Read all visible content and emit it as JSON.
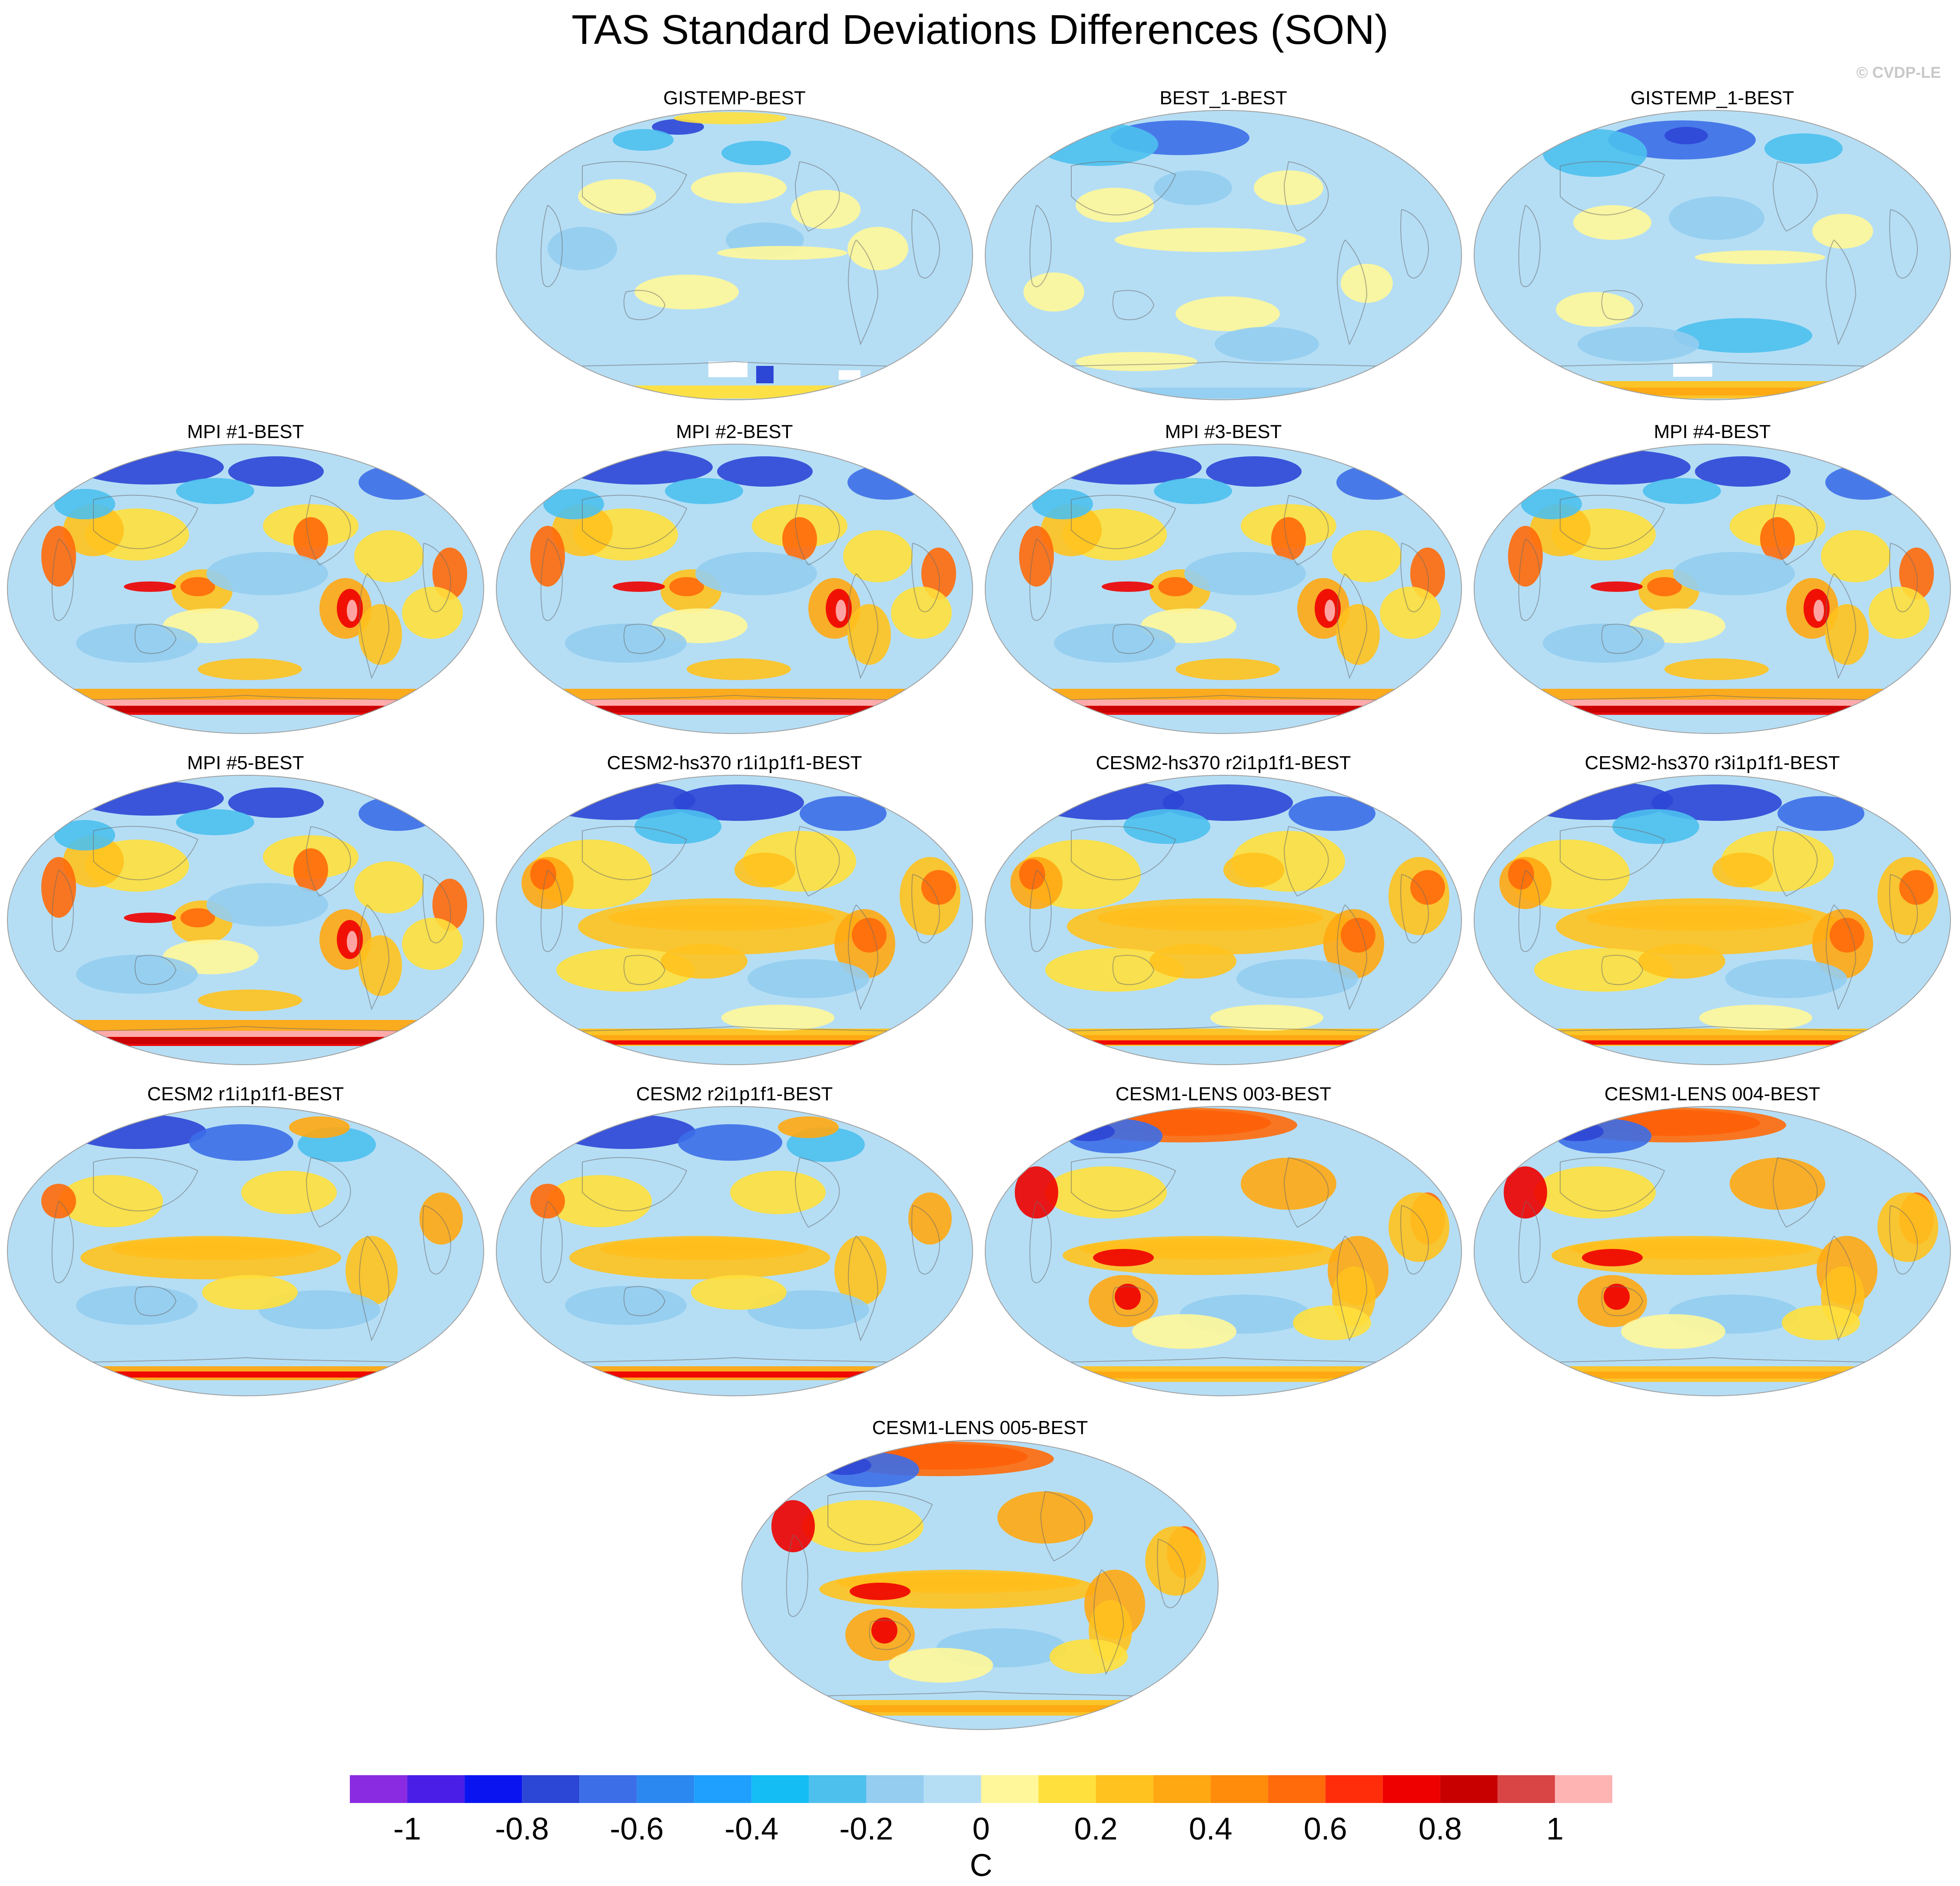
{
  "figure": {
    "title": "TAS Standard Deviations Differences (SON)",
    "watermark": "© CVDP-LE"
  },
  "panels": [
    {
      "title": "GISTEMP-BEST",
      "group": "obs",
      "variant": "obs_gistemp"
    },
    {
      "title": "BEST_1-BEST",
      "group": "obs",
      "variant": "obs_best1"
    },
    {
      "title": "GISTEMP_1-BEST",
      "group": "obs",
      "variant": "obs_gistemp1"
    },
    {
      "title": "MPI #1-BEST",
      "group": "mpi",
      "variant": "mpi"
    },
    {
      "title": "MPI #2-BEST",
      "group": "mpi",
      "variant": "mpi"
    },
    {
      "title": "MPI #3-BEST",
      "group": "mpi",
      "variant": "mpi"
    },
    {
      "title": "MPI #4-BEST",
      "group": "mpi",
      "variant": "mpi"
    },
    {
      "title": "MPI #5-BEST",
      "group": "mpi",
      "variant": "mpi"
    },
    {
      "title": "CESM2-hs370 r1i1p1f1-BEST",
      "group": "cesm2hs",
      "variant": "cesm2hs"
    },
    {
      "title": "CESM2-hs370 r2i1p1f1-BEST",
      "group": "cesm2hs",
      "variant": "cesm2hs"
    },
    {
      "title": "CESM2-hs370 r3i1p1f1-BEST",
      "group": "cesm2hs",
      "variant": "cesm2hs"
    },
    {
      "title": "CESM2 r1i1p1f1-BEST",
      "group": "cesm2",
      "variant": "cesm2"
    },
    {
      "title": "CESM2 r2i1p1f1-BEST",
      "group": "cesm2",
      "variant": "cesm2"
    },
    {
      "title": "CESM1-LENS 003-BEST",
      "group": "cesm1",
      "variant": "cesm1"
    },
    {
      "title": "CESM1-LENS 004-BEST",
      "group": "cesm1",
      "variant": "cesm1"
    },
    {
      "title": "CESM1-LENS 005-BEST",
      "group": "cesm1",
      "variant": "cesm1"
    }
  ],
  "colorbar": {
    "unit": "C",
    "levels": [
      -1.1,
      -1.0,
      -0.9,
      -0.8,
      -0.7,
      -0.6,
      -0.5,
      -0.4,
      -0.3,
      -0.2,
      -0.1,
      0,
      0.1,
      0.2,
      0.3,
      0.4,
      0.5,
      0.6,
      0.7,
      0.8,
      0.9,
      1.0,
      1.1
    ],
    "colors": [
      "#8a2be2",
      "#4b1ee8",
      "#0a14f0",
      "#2c46d6",
      "#3c6ee8",
      "#2b88f0",
      "#1fa0ff",
      "#14bef5",
      "#4dc0ee",
      "#94cdf0",
      "#b5def5",
      "#fff79a",
      "#ffe03c",
      "#ffc21e",
      "#ffa812",
      "#ff8c0a",
      "#ff6a0a",
      "#ff2d0a",
      "#ee0000",
      "#c80000",
      "#d94545",
      "#ffb4b4"
    ],
    "tick_labels": [
      "-1",
      "-0.8",
      "-0.6",
      "-0.4",
      "-0.2",
      "0",
      "0.2",
      "0.4",
      "0.6",
      "0.8",
      "1"
    ],
    "tick_values": [
      -1,
      -0.8,
      -0.6,
      -0.4,
      -0.2,
      0,
      0.2,
      0.4,
      0.6,
      0.8,
      1
    ]
  },
  "map_palette": {
    "ocean_light_blue": "#b5def5",
    "mid_blue": "#94cdf0",
    "blue": "#4dc0ee",
    "deep_blue": "#3c6ee8",
    "dark_blue": "#2c46d6",
    "pale_yellow": "#fff79a",
    "yellow": "#ffe03c",
    "gold": "#ffc21e",
    "orange": "#ffa812",
    "dark_orange": "#ff6a0a",
    "red": "#ee0000",
    "dark_red": "#c80000",
    "pink": "#ffb4b4",
    "coast": "#6b6b6b"
  }
}
